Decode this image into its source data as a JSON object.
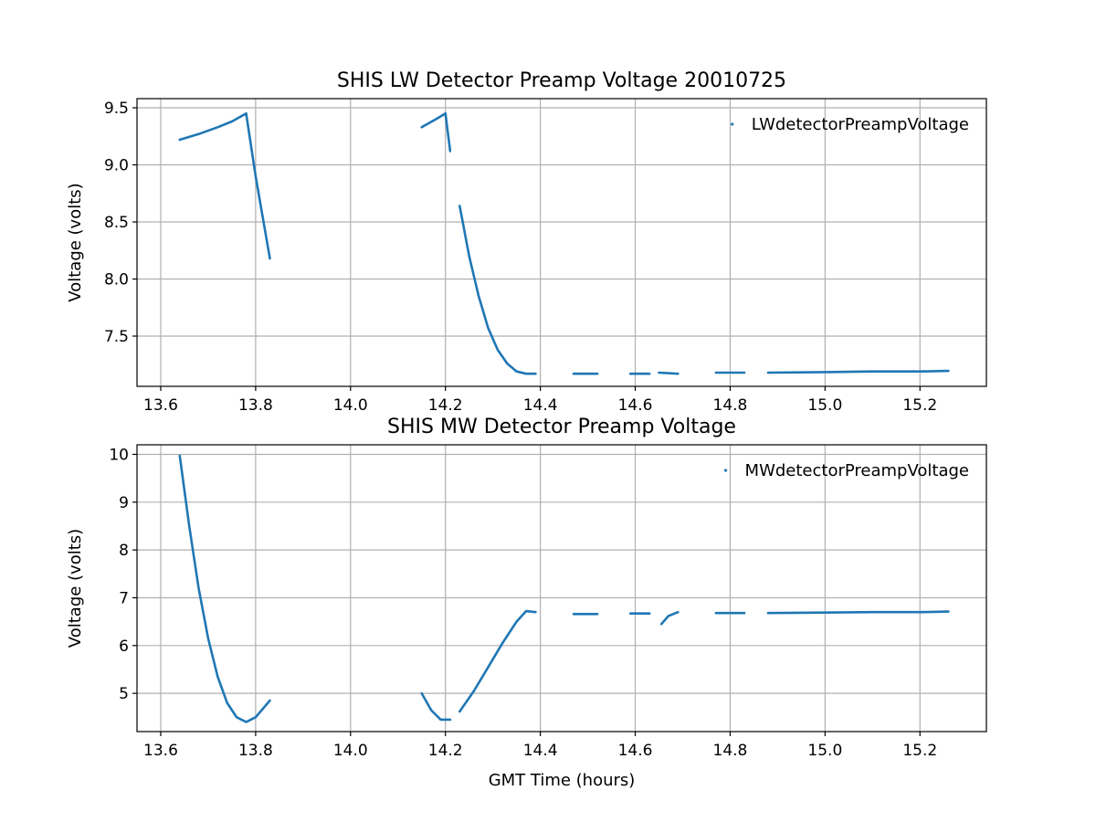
{
  "chart_data": [
    {
      "type": "scatter",
      "title": "SHIS LW Detector Preamp Voltage 20010725",
      "xlabel": "",
      "ylabel": "Voltage (volts)",
      "xlim": [
        13.55,
        15.34
      ],
      "ylim": [
        7.06,
        9.58
      ],
      "xticks": [
        "13.6",
        "13.8",
        "14.0",
        "14.2",
        "14.4",
        "14.6",
        "14.8",
        "15.0",
        "15.2"
      ],
      "yticks": [
        "7.5",
        "8.0",
        "8.5",
        "9.0",
        "9.5"
      ],
      "grid": true,
      "legend_position": "top-right",
      "series": [
        {
          "name": "LWdetectorPreampVoltage",
          "color": "#1f77b4",
          "segments": [
            {
              "x": [
                13.64,
                13.68,
                13.72,
                13.75,
                13.78
              ],
              "y": [
                9.22,
                9.27,
                9.33,
                9.38,
                9.45
              ]
            },
            {
              "x": [
                13.78,
                13.8,
                13.83
              ],
              "y": [
                9.45,
                8.9,
                8.18
              ]
            },
            {
              "x": [
                14.15,
                14.18,
                14.2
              ],
              "y": [
                9.33,
                9.4,
                9.45
              ]
            },
            {
              "x": [
                14.2,
                14.21
              ],
              "y": [
                9.45,
                9.12
              ]
            },
            {
              "x": [
                14.23,
                14.25,
                14.27,
                14.29,
                14.31,
                14.33,
                14.35,
                14.37,
                14.39
              ],
              "y": [
                8.64,
                8.2,
                7.85,
                7.57,
                7.38,
                7.26,
                7.19,
                7.17,
                7.17
              ]
            },
            {
              "x": [
                14.47,
                14.52
              ],
              "y": [
                7.17,
                7.17
              ]
            },
            {
              "x": [
                14.59,
                14.63
              ],
              "y": [
                7.17,
                7.17
              ]
            },
            {
              "x": [
                14.65,
                14.69
              ],
              "y": [
                7.18,
                7.17
              ]
            },
            {
              "x": [
                14.77,
                14.83
              ],
              "y": [
                7.18,
                7.18
              ]
            },
            {
              "x": [
                14.88,
                15.0,
                15.1,
                15.2,
                15.26
              ],
              "y": [
                7.18,
                7.185,
                7.19,
                7.19,
                7.195
              ]
            }
          ]
        }
      ]
    },
    {
      "type": "scatter",
      "title": "SHIS MW Detector Preamp Voltage",
      "xlabel": "GMT Time (hours)",
      "ylabel": "Voltage (volts)",
      "xlim": [
        13.55,
        15.34
      ],
      "ylim": [
        4.2,
        10.2
      ],
      "xticks": [
        "13.6",
        "13.8",
        "14.0",
        "14.2",
        "14.4",
        "14.6",
        "14.8",
        "15.0",
        "15.2"
      ],
      "yticks": [
        "5",
        "6",
        "7",
        "8",
        "9",
        "10"
      ],
      "grid": true,
      "legend_position": "top-right",
      "series": [
        {
          "name": "MWdetectorPreampVoltage",
          "color": "#1f77b4",
          "segments": [
            {
              "x": [
                13.64,
                13.66,
                13.68,
                13.7,
                13.72,
                13.74,
                13.76,
                13.78,
                13.8,
                13.83
              ],
              "y": [
                9.97,
                8.5,
                7.2,
                6.15,
                5.35,
                4.8,
                4.5,
                4.4,
                4.5,
                4.85
              ]
            },
            {
              "x": [
                14.15,
                14.17,
                14.19,
                14.21
              ],
              "y": [
                5.0,
                4.65,
                4.45,
                4.45
              ]
            },
            {
              "x": [
                14.23,
                14.26,
                14.29,
                14.32,
                14.35,
                14.37,
                14.39
              ],
              "y": [
                4.62,
                5.05,
                5.55,
                6.05,
                6.5,
                6.72,
                6.7
              ]
            },
            {
              "x": [
                14.47,
                14.52
              ],
              "y": [
                6.66,
                6.66
              ]
            },
            {
              "x": [
                14.59,
                14.63
              ],
              "y": [
                6.67,
                6.67
              ]
            },
            {
              "x": [
                14.655,
                14.67,
                14.69
              ],
              "y": [
                6.45,
                6.62,
                6.7
              ]
            },
            {
              "x": [
                14.77,
                14.83
              ],
              "y": [
                6.68,
                6.68
              ]
            },
            {
              "x": [
                14.88,
                15.0,
                15.1,
                15.2,
                15.26
              ],
              "y": [
                6.68,
                6.69,
                6.7,
                6.7,
                6.71
              ]
            }
          ]
        }
      ]
    }
  ]
}
